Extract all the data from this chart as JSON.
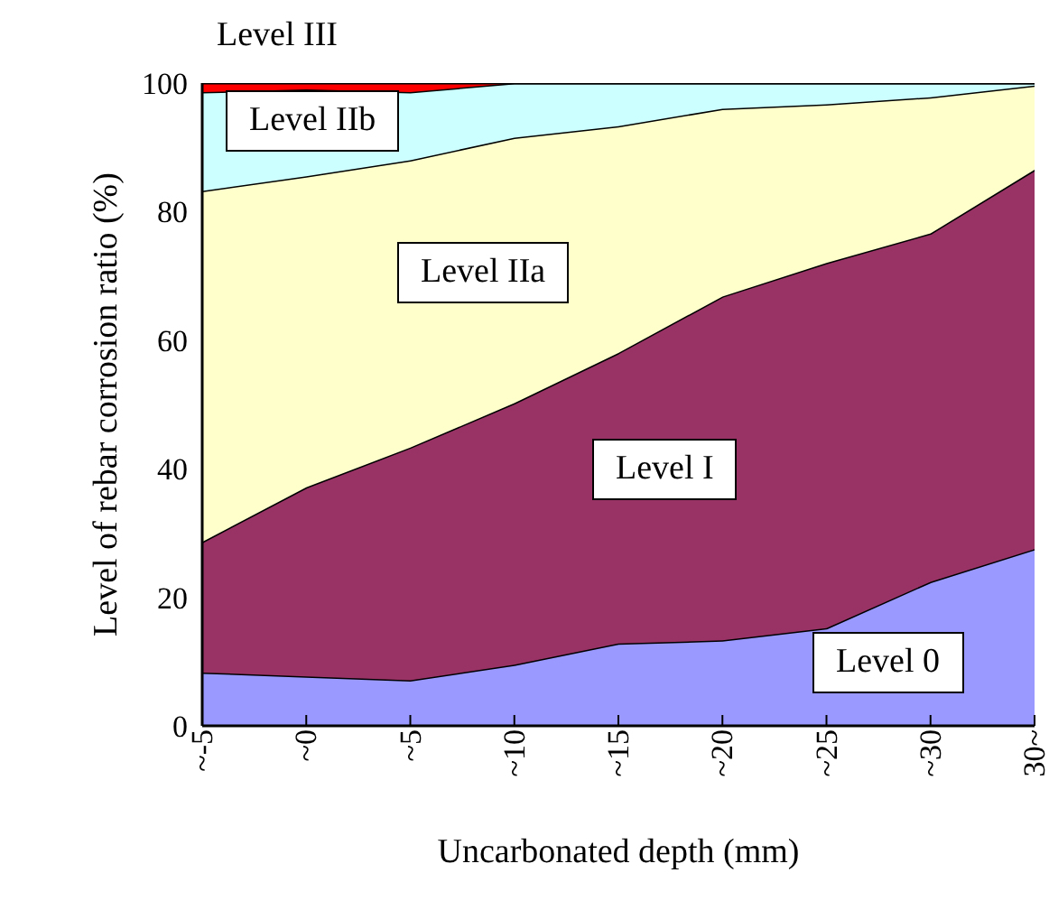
{
  "chart_data": {
    "type": "area",
    "stacked": true,
    "xlabel": "Uncarbonated depth (mm)",
    "ylabel": "Level of rebar corrosion ratio (%)",
    "categories": [
      "~-5",
      "~0",
      "~5",
      "~10",
      "~15",
      "~20",
      "~25",
      "~30",
      "30~"
    ],
    "series": [
      {
        "name": "Level 0",
        "color": "#9999ff",
        "values": [
          8.3,
          7.7,
          7.1,
          9.5,
          12.8,
          13.3,
          15.2,
          22.4,
          27.5
        ]
      },
      {
        "name": "Level I",
        "color": "#993366",
        "values": [
          20.3,
          29.4,
          36.2,
          40.7,
          45.2,
          53.5,
          56.8,
          54.2,
          59.0
        ]
      },
      {
        "name": "Level IIa",
        "color": "#ffffcc",
        "values": [
          54.6,
          48.4,
          44.7,
          41.3,
          35.3,
          29.2,
          24.7,
          21.2,
          13.1
        ]
      },
      {
        "name": "Level IIb",
        "color": "#ccffff",
        "values": [
          15.4,
          13.5,
          10.6,
          8.5,
          6.7,
          4.0,
          3.3,
          2.2,
          0.4
        ]
      },
      {
        "name": "Level III",
        "color": "#ff0000",
        "values": [
          1.4,
          1.0,
          1.4,
          0,
          0,
          0,
          0,
          0,
          0
        ]
      }
    ],
    "ylim": [
      0,
      100
    ],
    "yticks": [
      0,
      20,
      40,
      60,
      80,
      100
    ],
    "grid": false,
    "legend": false
  }
}
